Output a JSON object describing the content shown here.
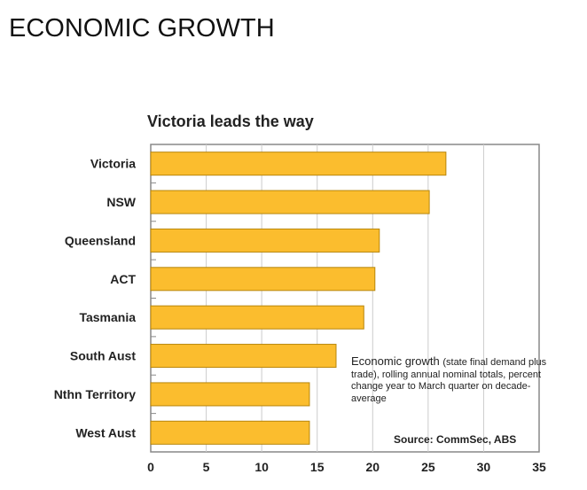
{
  "page": {
    "title": "ECONOMIC GROWTH"
  },
  "chart_data": {
    "type": "bar",
    "orientation": "horizontal",
    "title": "Victoria leads the way",
    "categories": [
      "Victoria",
      "NSW",
      "Queensland",
      "ACT",
      "Tasmania",
      "South Aust",
      "Nthn Territory",
      "West Aust"
    ],
    "values": [
      26.6,
      25.1,
      20.6,
      20.2,
      19.2,
      16.7,
      14.3,
      14.3
    ],
    "xlim": [
      0,
      35
    ],
    "xticks": [
      0,
      5,
      10,
      15,
      20,
      25,
      30,
      35
    ],
    "grid": true,
    "bar_color": "#FBBD2E",
    "bar_edge_color": "#B8860B",
    "annotation": {
      "lead": "Economic growth",
      "detail": "(state final demand plus trade), rolling annual nominal totals, percent change year to March quarter on decade-average",
      "source": "Source: CommSec, ABS"
    }
  }
}
